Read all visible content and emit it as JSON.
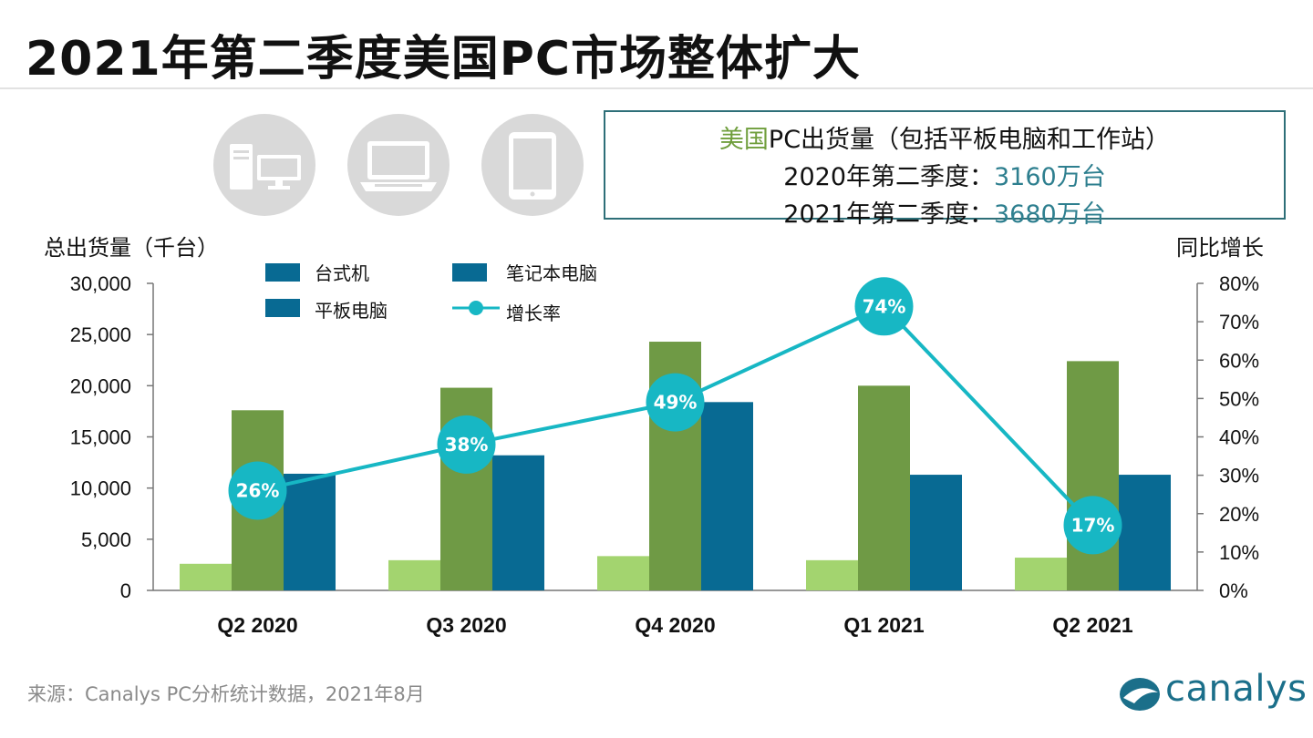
{
  "title": "2021年第二季度美国PC市场整体扩大",
  "infobox": {
    "line1_green": "美国",
    "line1_rest": "PC出货量（包括平板电脑和工作站）",
    "line2_label": "2020年第二季度：",
    "line2_value": "3160万台",
    "line3_label": "2021年第二季度：",
    "line3_value": "3680万台"
  },
  "icons": [
    "desktop-icon",
    "laptop-icon",
    "tablet-icon"
  ],
  "colors": {
    "desktop": "#a3d46f",
    "notebook": "#6f9a45",
    "tablet": "#086a93",
    "growth": "#17b7c4"
  },
  "source": "来源：Canalys PC分析统计数据，2021年8月",
  "brand": "canalys",
  "chart_data": {
    "type": "bar",
    "categories": [
      "Q2 2020",
      "Q3 2020",
      "Q4 2020",
      "Q1 2021",
      "Q2 2021"
    ],
    "ylabel": "总出货量（千台）",
    "y2label": "同比增长",
    "ylim": [
      0,
      30000
    ],
    "yticks": [
      "0",
      "5,000",
      "10,000",
      "15,000",
      "20,000",
      "25,000",
      "30,000"
    ],
    "y2lim": [
      0,
      80
    ],
    "y2ticks": [
      "0%",
      "10%",
      "20%",
      "30%",
      "40%",
      "50%",
      "60%",
      "70%",
      "80%"
    ],
    "series": [
      {
        "name": "台式机",
        "values": [
          2600,
          2950,
          3350,
          2950,
          3200
        ]
      },
      {
        "name": "笔记本电脑",
        "values": [
          17600,
          19800,
          24300,
          20000,
          22400
        ]
      },
      {
        "name": "平板电脑",
        "values": [
          11400,
          13200,
          18400,
          11300,
          11300
        ]
      }
    ],
    "line": {
      "name": "增长率",
      "values": [
        26,
        38,
        49,
        74,
        17
      ],
      "labels": [
        "26%",
        "38%",
        "49%",
        "74%",
        "17%"
      ]
    },
    "legend": [
      "台式机",
      "笔记本电脑",
      "平板电脑",
      "增长率"
    ]
  }
}
